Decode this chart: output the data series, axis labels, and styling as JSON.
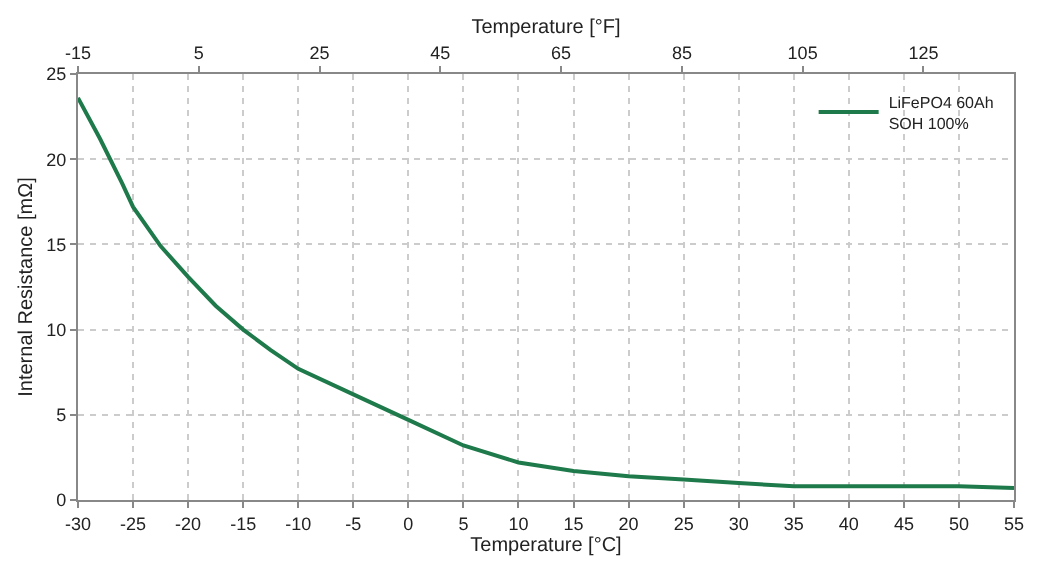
{
  "chart_data": {
    "type": "line",
    "xlabel": "Temperature [°C]",
    "ylabel": "Internal Resistance [mΩ]",
    "x2label": "Temperature [°F]",
    "series": [
      {
        "name": "LiFePO4 60Ah\nSOH 100%",
        "color": "#1e7a4a",
        "x": [
          -30,
          -28,
          -26,
          -25,
          -22.5,
          -20,
          -17.5,
          -15,
          -12.5,
          -10,
          -5,
          0,
          5,
          10,
          15,
          20,
          25,
          30,
          35,
          40,
          45,
          50,
          55
        ],
        "values": [
          23.6,
          21.2,
          18.6,
          17.2,
          14.9,
          13.1,
          11.4,
          10.0,
          8.8,
          7.7,
          6.2,
          4.7,
          3.2,
          2.2,
          1.7,
          1.4,
          1.2,
          1.0,
          0.8,
          0.8,
          0.8,
          0.8,
          0.7
        ]
      }
    ],
    "xlim": [
      -30,
      55
    ],
    "xticks": [
      -30,
      -25,
      -20,
      -15,
      -10,
      -5,
      0,
      5,
      10,
      15,
      20,
      25,
      30,
      35,
      40,
      45,
      50,
      55
    ],
    "ylim": [
      0,
      25
    ],
    "yticks": [
      0,
      5,
      10,
      15,
      20,
      25
    ],
    "x2lim": [
      -15,
      140
    ],
    "x2ticks": [
      -15,
      5,
      25,
      45,
      65,
      85,
      105,
      125
    ],
    "grid": true,
    "legend": "top right",
    "marker": "none",
    "line_style": "solid"
  }
}
